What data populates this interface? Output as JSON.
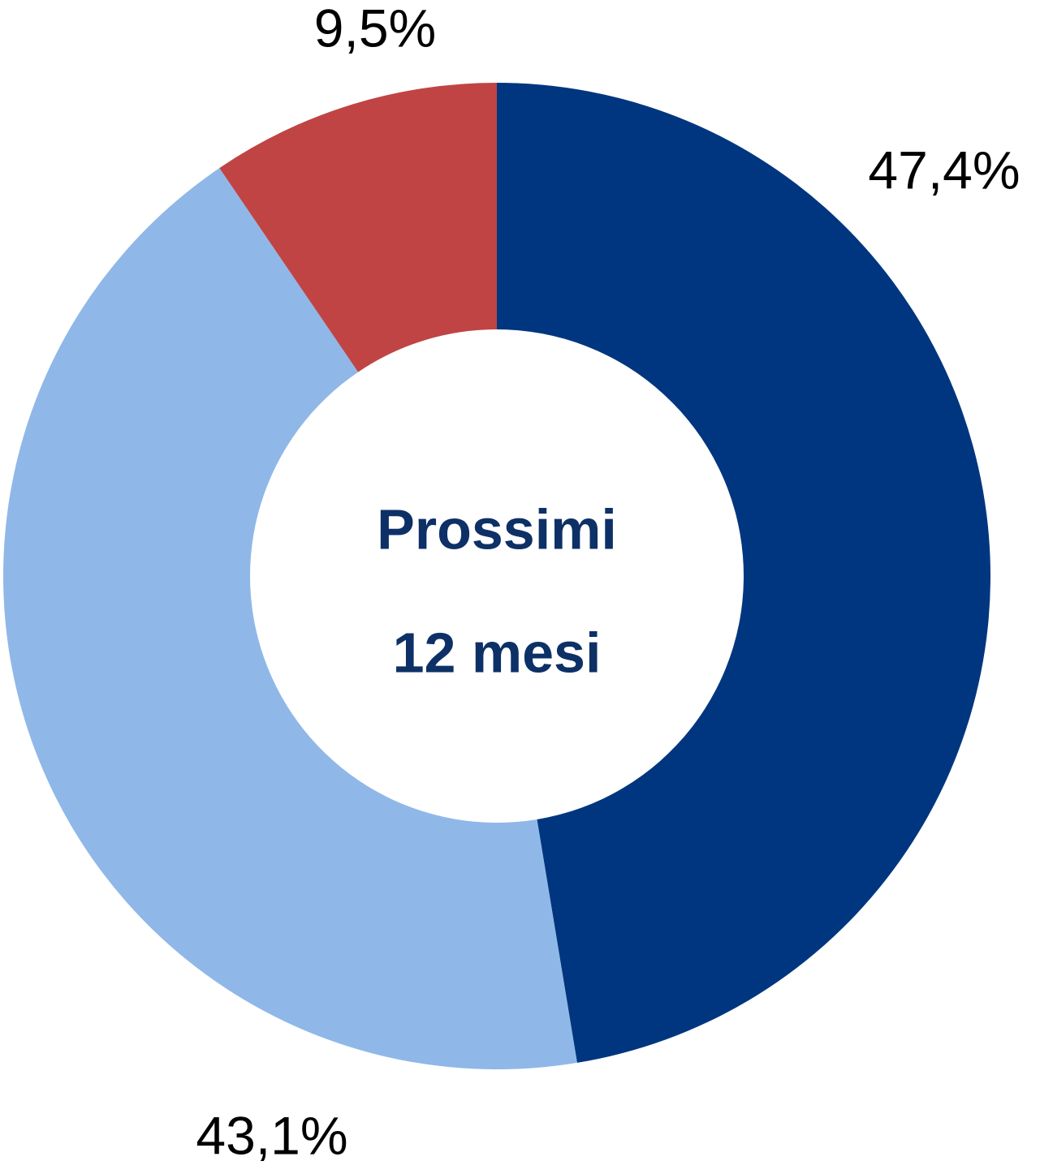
{
  "chart_data": {
    "type": "donut",
    "center_label": [
      "Prossimi",
      "12 mesi"
    ],
    "categories": [
      null,
      null,
      null
    ],
    "values": [
      47.4,
      43.1,
      9.5
    ],
    "value_labels": [
      "47,4%",
      "43,1%",
      "9,5%"
    ],
    "colors": [
      "#00367f",
      "#8fb8e8",
      "#c04444"
    ]
  }
}
